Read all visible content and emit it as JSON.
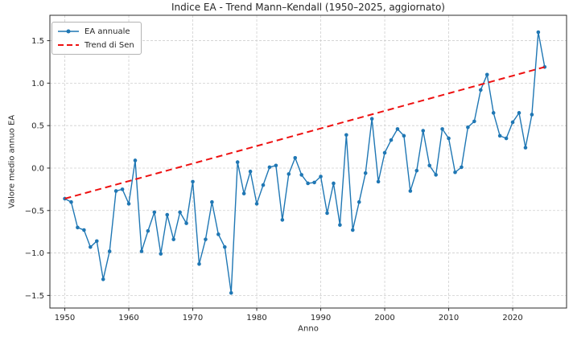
{
  "chart_data": {
    "type": "line",
    "title": "Indice EA - Trend Mann–Kendall (1950–2025, aggiornato)",
    "xlabel": "Anno",
    "ylabel": "Valore medio annuo EA",
    "x": [
      1950,
      1951,
      1952,
      1953,
      1954,
      1955,
      1956,
      1957,
      1958,
      1959,
      1960,
      1961,
      1962,
      1963,
      1964,
      1965,
      1966,
      1967,
      1968,
      1969,
      1970,
      1971,
      1972,
      1973,
      1974,
      1975,
      1976,
      1977,
      1978,
      1979,
      1980,
      1981,
      1982,
      1983,
      1984,
      1985,
      1986,
      1987,
      1988,
      1989,
      1990,
      1991,
      1992,
      1993,
      1994,
      1995,
      1996,
      1997,
      1998,
      1999,
      2000,
      2001,
      2002,
      2003,
      2004,
      2005,
      2006,
      2007,
      2008,
      2009,
      2010,
      2011,
      2012,
      2013,
      2014,
      2015,
      2016,
      2017,
      2018,
      2019,
      2020,
      2021,
      2022,
      2023,
      2024,
      2025
    ],
    "series": [
      {
        "name": "EA annuale",
        "style": "line-markers",
        "color": "#1f77b4",
        "values": [
          -0.36,
          -0.4,
          -0.7,
          -0.73,
          -0.93,
          -0.86,
          -1.31,
          -0.98,
          -0.27,
          -0.25,
          -0.42,
          0.09,
          -0.98,
          -0.74,
          -0.52,
          -1.01,
          -0.55,
          -0.84,
          -0.52,
          -0.65,
          -0.16,
          -1.13,
          -0.84,
          -0.4,
          -0.78,
          -0.93,
          -1.47,
          0.07,
          -0.3,
          -0.04,
          -0.42,
          -0.2,
          0.01,
          0.03,
          -0.61,
          -0.07,
          0.12,
          -0.08,
          -0.18,
          -0.17,
          -0.1,
          -0.53,
          -0.18,
          -0.67,
          0.39,
          -0.73,
          -0.4,
          -0.06,
          0.58,
          -0.16,
          0.18,
          0.33,
          0.46,
          0.38,
          -0.27,
          -0.03,
          0.44,
          0.03,
          -0.08,
          0.46,
          0.35,
          -0.05,
          0.01,
          0.48,
          0.55,
          0.92,
          1.1,
          0.65,
          0.38,
          0.35,
          0.54,
          0.65,
          0.24,
          0.63,
          1.6,
          1.19
        ]
      },
      {
        "name": "Trend di Sen",
        "style": "dashed-line",
        "color": "#ee1111",
        "trend_x": [
          1950,
          2025
        ],
        "trend_y": [
          -0.36,
          1.19
        ]
      }
    ],
    "legend": {
      "position": "upper-left",
      "entries": [
        "EA annuale",
        "Trend di Sen"
      ]
    },
    "xticks": [
      1950,
      1960,
      1970,
      1980,
      1990,
      2000,
      2010,
      2020
    ],
    "yticks": [
      1.5,
      1.0,
      0.5,
      0.0,
      -0.5,
      -1.0,
      -1.5
    ],
    "ytick_labels": [
      "1.5",
      "1.0",
      "0.5",
      "0.0",
      "−0.5",
      "−1.0",
      "−1.5"
    ],
    "xlim": [
      1947.67,
      2028.42
    ],
    "ylim": [
      -1.648,
      1.799
    ],
    "grid": true
  },
  "colors": {
    "ea_line": "#1f77b4",
    "trend_line": "#ee1111",
    "grid": "#cfcfcf",
    "spine": "#2b2b2b",
    "text": "#262626",
    "background": "#ffffff"
  }
}
